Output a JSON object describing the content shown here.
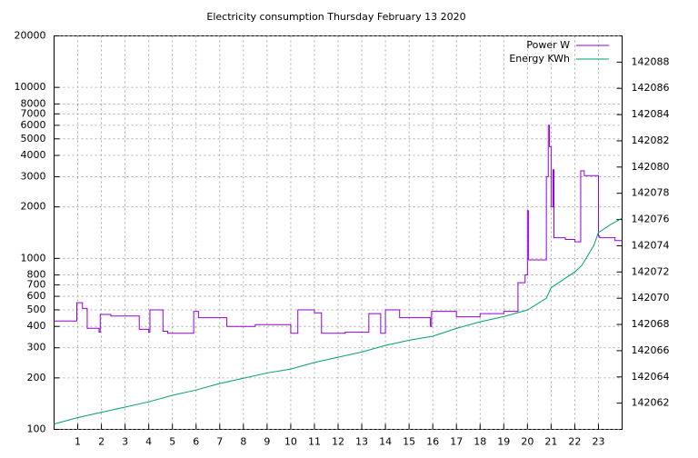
{
  "chart_data": {
    "type": "line",
    "title": "Electricity consumption Thursday February 13 2020",
    "xlim": [
      0,
      24
    ],
    "xticks": [
      1,
      2,
      3,
      4,
      5,
      6,
      7,
      8,
      9,
      10,
      11,
      12,
      13,
      14,
      15,
      16,
      17,
      18,
      19,
      20,
      21,
      22,
      23
    ],
    "ylim": [
      100,
      20000
    ],
    "yscale": "log",
    "yticks": [
      100,
      200,
      300,
      400,
      500,
      600,
      700,
      800,
      1000,
      2000,
      3000,
      4000,
      5000,
      6000,
      7000,
      8000,
      10000,
      20000
    ],
    "y2lim": [
      142060,
      142090
    ],
    "y2ticks": [
      142062,
      142064,
      142066,
      142068,
      142070,
      142072,
      142074,
      142076,
      142078,
      142080,
      142082,
      142084,
      142086,
      142088
    ],
    "grid": true,
    "legend": "top-right",
    "series": [
      {
        "name": "Power W",
        "color": "#9400d3",
        "axis": "y",
        "x": [
          0,
          0.96,
          0.96,
          1.2,
          1.2,
          1.4,
          1.4,
          1.9,
          1.9,
          1.95,
          1.95,
          2.4,
          2.4,
          3.6,
          3.6,
          4.0,
          4.0,
          4.05,
          4.05,
          4.6,
          4.6,
          4.8,
          4.8,
          5.9,
          5.9,
          6.1,
          6.1,
          7.3,
          7.3,
          8.5,
          8.5,
          10.0,
          10.0,
          10.3,
          10.3,
          11.0,
          11.0,
          11.3,
          11.3,
          12.3,
          12.3,
          13.3,
          13.3,
          13.8,
          13.8,
          14.0,
          14.0,
          14.6,
          14.6,
          15.9,
          15.9,
          15.95,
          15.95,
          17.0,
          17.0,
          18.0,
          18.0,
          19.0,
          19.0,
          19.6,
          19.6,
          19.9,
          19.9,
          20.0,
          20.0,
          20.05,
          20.05,
          20.8,
          20.8,
          20.88,
          20.88,
          20.93,
          20.93,
          21.0,
          21.0,
          21.08,
          21.08,
          21.12,
          21.12,
          21.6,
          21.6,
          22.0,
          22.0,
          22.25,
          22.25,
          22.4,
          22.4,
          23.0,
          23.0,
          23.05,
          23.05,
          23.7,
          23.7,
          24
        ],
        "values": [
          430,
          430,
          550,
          550,
          510,
          510,
          390,
          390,
          370,
          370,
          470,
          470,
          460,
          460,
          385,
          385,
          370,
          370,
          500,
          500,
          375,
          375,
          365,
          365,
          490,
          490,
          450,
          450,
          400,
          400,
          410,
          410,
          365,
          365,
          500,
          500,
          480,
          480,
          365,
          365,
          370,
          370,
          475,
          475,
          365,
          365,
          500,
          500,
          450,
          450,
          400,
          400,
          490,
          490,
          455,
          455,
          475,
          475,
          490,
          490,
          720,
          720,
          800,
          800,
          1900,
          1900,
          980,
          980,
          3000,
          3000,
          6000,
          6000,
          4500,
          4500,
          2000,
          2000,
          3300,
          3300,
          1320,
          1320,
          1290,
          1290,
          1250,
          1250,
          3250,
          3250,
          3050,
          3050,
          1350,
          1350,
          1320,
          1320,
          1270,
          1270
        ]
      },
      {
        "name": "Energy KWh",
        "color": "#009e73",
        "axis": "y2",
        "x": [
          0,
          1,
          2,
          3,
          4,
          5,
          6,
          7,
          8,
          9,
          10,
          11,
          12,
          13,
          14,
          15,
          16,
          17,
          18,
          19,
          19.6,
          20,
          20.8,
          21,
          21.5,
          22,
          22.3,
          22.8,
          23,
          23.5,
          24
        ],
        "values": [
          142060.41,
          142060.9,
          142061.3,
          142061.7,
          142062.1,
          142062.6,
          142063.0,
          142063.5,
          142063.9,
          142064.3,
          142064.6,
          142065.1,
          142065.5,
          142065.9,
          142066.4,
          142066.8,
          142067.1,
          142067.7,
          142068.2,
          142068.6,
          142068.9,
          142069.1,
          142070.0,
          142070.8,
          142071.4,
          142072.0,
          142072.5,
          142074.0,
          142075.0,
          142075.6,
          142076.1
        ]
      }
    ]
  }
}
